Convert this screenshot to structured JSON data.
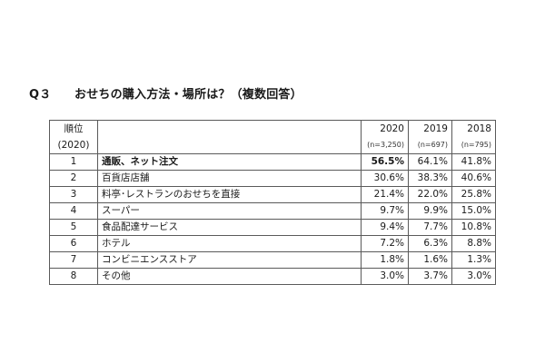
{
  "question": {
    "number": "Q３",
    "text": "おせちの購入方法・場所は？（複数回答）"
  },
  "table": {
    "rank_label": "順位",
    "rank_year": "(2020)",
    "years": [
      {
        "year": "2020",
        "n": "(n=3,250)"
      },
      {
        "year": "2019",
        "n": "(n=697)"
      },
      {
        "year": "2018",
        "n": "(n=795)"
      }
    ],
    "rows": [
      {
        "rank": "1",
        "item": "通販、ネット注文",
        "v2020": "56.5%",
        "v2019": "64.1%",
        "v2018": "41.8%"
      },
      {
        "rank": "2",
        "item": "百貨店店舗",
        "v2020": "30.6%",
        "v2019": "38.3%",
        "v2018": "40.6%"
      },
      {
        "rank": "3",
        "item": "料亭･レストランのおせちを直接",
        "v2020": "21.4%",
        "v2019": "22.0%",
        "v2018": "25.8%"
      },
      {
        "rank": "4",
        "item": "スーパー",
        "v2020": "9.7%",
        "v2019": "9.9%",
        "v2018": "15.0%"
      },
      {
        "rank": "5",
        "item": "食品配達サービス",
        "v2020": "9.4%",
        "v2019": "7.7%",
        "v2018": "10.8%"
      },
      {
        "rank": "6",
        "item": "ホテル",
        "v2020": "7.2%",
        "v2019": "6.3%",
        "v2018": "8.8%"
      },
      {
        "rank": "7",
        "item": "コンビニエンスストア",
        "v2020": "1.8%",
        "v2019": "1.6%",
        "v2018": "1.3%"
      },
      {
        "rank": "8",
        "item": "その他",
        "v2020": "3.0%",
        "v2019": "3.7%",
        "v2018": "3.0%"
      }
    ]
  }
}
